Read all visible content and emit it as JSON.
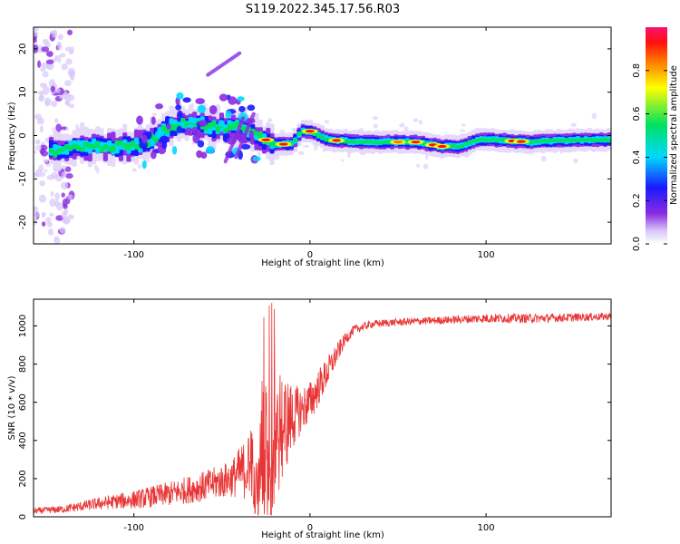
{
  "figure": {
    "title": "S119.2022.345.17.56.R03"
  },
  "colors": {
    "signal": "#e83434",
    "spectrogram_background": "#ffffff"
  },
  "chart_data": [
    {
      "type": "heatmap",
      "title": "S119.2022.345.17.56.R03",
      "xlabel": "Height of straight line (km)",
      "ylabel": "Frequency (Hz)",
      "xlim": [
        -157,
        171
      ],
      "ylim": [
        -25,
        25
      ],
      "xticks": [
        -100,
        0,
        100
      ],
      "xtick_labels": [
        "-100",
        "0",
        "100"
      ],
      "yticks": [
        -20,
        -10,
        0,
        10,
        20
      ],
      "ytick_labels": [
        "-20",
        "-10",
        "0",
        "10",
        "20"
      ],
      "grid": false,
      "colormap": "rainbow (white to violet to blue to cyan to green to yellow to red to pink)",
      "colorbar": {
        "label": "Normalized spectral amplitude",
        "range": [
          0,
          1
        ],
        "ticks": [
          0,
          0.2,
          0.4,
          0.6,
          0.8
        ],
        "tick_labels": [
          "0.0",
          "0.2",
          "0.4",
          "0.6",
          "0.8"
        ]
      },
      "ridge": [
        {
          "x": -145,
          "y": -3.5
        },
        {
          "x": -130,
          "y": -2.5
        },
        {
          "x": -115,
          "y": -2.5
        },
        {
          "x": -100,
          "y": -2.5
        },
        {
          "x": -90,
          "y": -1
        },
        {
          "x": -80,
          "y": 2
        },
        {
          "x": -70,
          "y": 3
        },
        {
          "x": -55,
          "y": 2
        },
        {
          "x": -40,
          "y": 2
        },
        {
          "x": -30,
          "y": 0
        },
        {
          "x": -20,
          "y": -2
        },
        {
          "x": -10,
          "y": -2
        },
        {
          "x": -5,
          "y": 1
        },
        {
          "x": 0,
          "y": 1
        },
        {
          "x": 10,
          "y": -1
        },
        {
          "x": 30,
          "y": -1.5
        },
        {
          "x": 60,
          "y": -1.5
        },
        {
          "x": 75,
          "y": -2.5
        },
        {
          "x": 85,
          "y": -2.5
        },
        {
          "x": 95,
          "y": -1
        },
        {
          "x": 105,
          "y": -1
        },
        {
          "x": 125,
          "y": -1.5
        },
        {
          "x": 150,
          "y": -1
        },
        {
          "x": 170,
          "y": -1
        }
      ]
    },
    {
      "type": "line",
      "xlabel": "Height of straight line (km)",
      "ylabel": "SNR (10 * v/v)",
      "xlim": [
        -157,
        171
      ],
      "ylim": [
        0,
        1140
      ],
      "xticks": [
        -100,
        0,
        100
      ],
      "xtick_labels": [
        "-100",
        "0",
        "100"
      ],
      "yticks": [
        0,
        200,
        400,
        600,
        800,
        1000
      ],
      "ytick_labels": [
        "0",
        "200",
        "400",
        "600",
        "800",
        "1000"
      ],
      "grid": false,
      "envelope": {
        "x": [
          -157,
          -140,
          -120,
          -100,
          -80,
          -60,
          -45,
          -35,
          -27,
          -22,
          -15,
          -10,
          -5,
          0,
          5,
          10,
          15,
          20,
          25,
          35,
          50,
          75,
          100,
          130,
          171
        ],
        "mean": [
          30,
          40,
          70,
          90,
          120,
          160,
          200,
          260,
          330,
          400,
          480,
          520,
          560,
          600,
          680,
          760,
          850,
          930,
          980,
          1010,
          1020,
          1030,
          1040,
          1040,
          1050
        ],
        "spread": [
          20,
          25,
          40,
          60,
          80,
          100,
          120,
          220,
          500,
          520,
          350,
          220,
          150,
          140,
          120,
          100,
          70,
          40,
          30,
          25,
          25,
          25,
          30,
          30,
          25
        ]
      }
    }
  ]
}
